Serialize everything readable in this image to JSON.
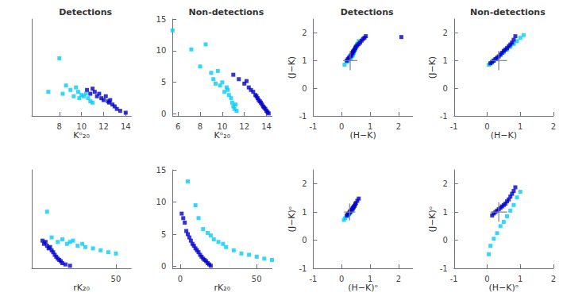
{
  "chart_data": [
    {
      "type": "scatter",
      "title": "Detections",
      "x_label": "Kᵒ₂₀",
      "xlim": [
        5.5,
        14.5
      ],
      "xticks": [
        8,
        10,
        12,
        14
      ],
      "ylim": [
        -0.3,
        15
      ],
      "tick_labels": "x",
      "grid": false,
      "series": [
        {
          "color": "#00CCFF",
          "marker": "square",
          "x": [
            7.0,
            8.0,
            8.3,
            8.6,
            9.0,
            9.3,
            9.5,
            9.7,
            9.8,
            10.0,
            10.2,
            10.4,
            10.6,
            10.8,
            11.0
          ],
          "values": [
            3.5,
            8.8,
            3.2,
            4.5,
            3.8,
            2.8,
            4.2,
            3.5,
            2.5,
            3.0,
            2.8,
            3.2,
            2.5,
            2.0,
            1.8
          ]
        },
        {
          "color": "#0000CC",
          "marker": "square",
          "x": [
            10.5,
            10.8,
            11.0,
            11.2,
            11.4,
            11.6,
            11.8,
            12.0,
            12.2,
            12.4,
            12.5,
            12.6,
            12.8,
            13.0,
            13.2,
            13.5,
            14.0
          ],
          "values": [
            3.8,
            3.2,
            4.0,
            3.5,
            2.8,
            3.2,
            2.5,
            2.2,
            2.8,
            2.0,
            1.8,
            2.2,
            1.5,
            1.2,
            0.8,
            0.5,
            0.2
          ]
        }
      ]
    },
    {
      "type": "scatter",
      "title": "Non-detections",
      "x_label": "Kᵒ₂₀",
      "xlim": [
        5.5,
        14.5
      ],
      "xticks": [
        6,
        8,
        10,
        12,
        14
      ],
      "ylim": [
        -0.3,
        15
      ],
      "yticks": [
        0,
        5,
        10,
        15
      ],
      "grid": false,
      "series": [
        {
          "color": "#00CCFF",
          "marker": "square",
          "x": [
            5.5,
            7.2,
            8.0,
            8.5,
            9.0,
            9.2,
            9.4,
            9.6,
            9.8,
            10.0,
            10.2,
            10.4,
            10.5,
            10.6,
            10.8,
            10.9,
            11.0,
            11.1,
            11.2,
            11.3
          ],
          "values": [
            13.2,
            10.2,
            7.5,
            11.0,
            6.5,
            5.5,
            4.8,
            6.8,
            4.5,
            5.0,
            3.5,
            4.2,
            3.8,
            3.0,
            2.5,
            1.8,
            1.2,
            0.8,
            1.5,
            0.5
          ]
        },
        {
          "color": "#0000CC",
          "marker": "square",
          "x": [
            11.0,
            11.5,
            12.0,
            12.2,
            12.4,
            12.6,
            12.8,
            13.0,
            13.1,
            13.2,
            13.3,
            13.4,
            13.5,
            13.6,
            13.7,
            13.8,
            13.9,
            14.0,
            14.1,
            14.2
          ],
          "values": [
            6.2,
            5.5,
            4.8,
            5.2,
            4.2,
            3.8,
            3.5,
            3.0,
            2.8,
            2.5,
            2.2,
            2.0,
            1.8,
            1.5,
            1.2,
            1.0,
            0.8,
            0.5,
            0.3,
            0.1
          ]
        }
      ]
    },
    {
      "type": "scatter",
      "title": "Detections",
      "x_label": "(H−K)",
      "y_label": "(J−K)",
      "xlim": [
        -1,
        2.5
      ],
      "xticks": [
        -1,
        0,
        1,
        2
      ],
      "ylim": [
        -1,
        2.5
      ],
      "yticks": [
        -1,
        0,
        1,
        2
      ],
      "grid": false,
      "series": [
        {
          "color": "#00CCFF",
          "marker": "square",
          "x": [
            0.1,
            0.18,
            0.22,
            0.28,
            0.3,
            0.32,
            0.35,
            0.38,
            0.4,
            0.42,
            0.45,
            0.48,
            0.5,
            0.52,
            0.55,
            0.6
          ],
          "values": [
            0.85,
            0.95,
            1.0,
            1.05,
            1.08,
            1.1,
            1.15,
            1.18,
            1.22,
            1.28,
            1.35,
            1.4,
            1.48,
            1.52,
            1.6,
            1.7
          ]
        },
        {
          "color": "#0000CC",
          "marker": "square",
          "x": [
            0.18,
            0.22,
            0.25,
            0.3,
            0.32,
            0.35,
            0.38,
            0.4,
            0.42,
            0.45,
            0.48,
            0.5,
            0.55,
            0.6,
            0.65,
            0.7,
            0.75,
            0.8,
            0.85,
            2.1
          ],
          "values": [
            1.0,
            1.05,
            1.1,
            1.15,
            1.18,
            1.22,
            1.28,
            1.32,
            1.35,
            1.4,
            1.45,
            1.5,
            1.55,
            1.6,
            1.65,
            1.72,
            1.78,
            1.82,
            1.88,
            1.85
          ]
        }
      ],
      "error_bar": {
        "x": 0.3,
        "y": 1.0,
        "xerr": 0.25,
        "yerr": 0.35,
        "color": "gray"
      }
    },
    {
      "type": "scatter",
      "title": "Non-detections",
      "x_label": "(H−K)",
      "y_label": "(J−K)",
      "xlim": [
        -1,
        2
      ],
      "xticks": [
        -1,
        0,
        1,
        2
      ],
      "ylim": [
        -1,
        2.5
      ],
      "yticks": [
        -1,
        0,
        1,
        2
      ],
      "grid": false,
      "series": [
        {
          "color": "#00CCFF",
          "marker": "square",
          "x": [
            0.05,
            0.1,
            0.15,
            0.2,
            0.25,
            0.3,
            0.4,
            0.5,
            0.6,
            0.7,
            0.8,
            0.9,
            1.0,
            1.1
          ],
          "values": [
            0.85,
            0.9,
            0.95,
            1.0,
            1.05,
            1.1,
            1.2,
            1.3,
            1.4,
            1.5,
            1.6,
            1.7,
            1.82,
            1.92
          ]
        },
        {
          "color": "#0000CC",
          "marker": "square",
          "x": [
            0.1,
            0.15,
            0.2,
            0.25,
            0.3,
            0.35,
            0.4,
            0.45,
            0.5,
            0.55,
            0.6,
            0.65,
            0.7,
            0.75,
            0.8,
            0.85
          ],
          "values": [
            0.9,
            0.95,
            1.0,
            1.05,
            1.1,
            1.15,
            1.22,
            1.28,
            1.35,
            1.4,
            1.45,
            1.52,
            1.58,
            1.65,
            1.75,
            1.88
          ]
        }
      ],
      "error_bar": {
        "x": 0.35,
        "y": 1.0,
        "xerr": 0.25,
        "yerr": 0.35,
        "color": "gray"
      }
    },
    {
      "type": "scatter",
      "x_label": "rK₂₀",
      "xlim": [
        -5,
        60
      ],
      "xticks": [
        50
      ],
      "ylim": [
        -0.3,
        15
      ],
      "tick_labels": "x",
      "grid": false,
      "series": [
        {
          "color": "#00CCFF",
          "marker": "square",
          "x": [
            5,
            8,
            12,
            15,
            18,
            20,
            22,
            25,
            28,
            30,
            35,
            40,
            45,
            50
          ],
          "values": [
            8.5,
            4.5,
            3.8,
            4.2,
            3.5,
            3.8,
            4.0,
            3.2,
            3.5,
            3.0,
            2.8,
            2.5,
            2.2,
            2.0
          ]
        },
        {
          "color": "#0000CC",
          "marker": "square",
          "x": [
            2,
            3,
            4,
            5,
            6,
            7,
            8,
            9,
            10,
            11,
            12,
            13,
            14,
            15,
            17,
            20
          ],
          "values": [
            4.0,
            3.5,
            3.8,
            3.2,
            2.8,
            3.0,
            2.5,
            2.2,
            1.8,
            1.5,
            1.2,
            1.0,
            0.8,
            0.5,
            0.3,
            0.1
          ]
        }
      ]
    },
    {
      "type": "scatter",
      "x_label": "rK₂₀",
      "xlim": [
        -5,
        60
      ],
      "xticks": [
        0,
        50
      ],
      "ylim": [
        -0.3,
        15
      ],
      "yticks": [
        0,
        5,
        10,
        15
      ],
      "grid": false,
      "series": [
        {
          "color": "#00CCFF",
          "marker": "square",
          "x": [
            5,
            10,
            12,
            15,
            18,
            20,
            22,
            25,
            28,
            30,
            35,
            40,
            45,
            50,
            55,
            60
          ],
          "values": [
            13.2,
            9.5,
            7.5,
            5.8,
            5.2,
            4.8,
            4.2,
            3.8,
            3.5,
            3.0,
            2.5,
            2.0,
            1.8,
            1.5,
            1.2,
            1.0
          ]
        },
        {
          "color": "#0000CC",
          "marker": "square",
          "x": [
            1,
            2,
            3,
            4,
            5,
            6,
            7,
            8,
            9,
            10,
            11,
            12,
            13,
            14,
            15,
            16,
            17,
            18,
            19,
            20
          ],
          "values": [
            8.2,
            7.5,
            6.8,
            5.5,
            5.0,
            4.5,
            4.0,
            3.5,
            3.2,
            2.8,
            2.5,
            2.2,
            1.8,
            1.5,
            1.2,
            1.0,
            0.8,
            0.5,
            0.3,
            0.1
          ]
        }
      ]
    },
    {
      "type": "scatter",
      "x_label": "(H−K)ᵒ",
      "y_label": "(J−K)ᵒ",
      "xlim": [
        -1,
        2.5
      ],
      "xticks": [
        -1,
        0,
        1,
        2
      ],
      "ylim": [
        -1,
        2.5
      ],
      "yticks": [
        -1,
        0,
        1,
        2
      ],
      "grid": false,
      "series": [
        {
          "color": "#00CCFF",
          "marker": "square",
          "x": [
            0.08,
            0.12,
            0.18,
            0.22,
            0.25,
            0.28,
            0.3,
            0.32,
            0.35,
            0.38,
            0.4,
            0.42,
            0.45
          ],
          "values": [
            0.72,
            0.78,
            0.85,
            0.9,
            0.92,
            0.95,
            0.98,
            1.0,
            1.05,
            1.08,
            1.12,
            1.18,
            1.22
          ]
        },
        {
          "color": "#0000CC",
          "marker": "square",
          "x": [
            0.18,
            0.22,
            0.25,
            0.28,
            0.3,
            0.32,
            0.35,
            0.38,
            0.4,
            0.42,
            0.45,
            0.48,
            0.5,
            0.55,
            0.6
          ],
          "values": [
            0.88,
            0.92,
            0.95,
            1.0,
            1.02,
            1.05,
            1.08,
            1.12,
            1.15,
            1.18,
            1.22,
            1.28,
            1.32,
            1.4,
            1.48
          ]
        }
      ],
      "error_bar": {
        "x": 0.28,
        "y": 1.0,
        "xerr": 0.2,
        "yerr": 0.3,
        "color": "gray"
      }
    },
    {
      "type": "scatter",
      "x_label": "(H−K)ᵒ",
      "y_label": "(J−K)ᵒ",
      "xlim": [
        -1,
        2
      ],
      "xticks": [
        -1,
        0,
        1,
        2
      ],
      "ylim": [
        -1,
        2.5
      ],
      "yticks": [
        -1,
        0,
        1,
        2
      ],
      "grid": false,
      "series": [
        {
          "color": "#00CCFF",
          "marker": "square",
          "x": [
            0.05,
            0.1,
            0.2,
            0.3,
            0.4,
            0.5,
            0.6,
            0.7,
            0.8,
            0.9,
            1.0
          ],
          "values": [
            -0.5,
            -0.2,
            0.05,
            0.25,
            0.5,
            0.65,
            0.85,
            1.05,
            1.25,
            1.52,
            1.72
          ]
        },
        {
          "color": "#0000CC",
          "marker": "square",
          "x": [
            0.15,
            0.2,
            0.25,
            0.3,
            0.35,
            0.4,
            0.45,
            0.5,
            0.55,
            0.6,
            0.65,
            0.7,
            0.75,
            0.8,
            0.85
          ],
          "values": [
            0.88,
            0.95,
            1.0,
            1.05,
            1.1,
            1.15,
            1.2,
            1.25,
            1.3,
            1.38,
            1.45,
            1.55,
            1.65,
            1.75,
            1.88
          ]
        }
      ],
      "error_bar": {
        "x": 0.35,
        "y": 1.0,
        "xerr": 0.25,
        "yerr": 0.35,
        "color": "gray"
      }
    }
  ]
}
